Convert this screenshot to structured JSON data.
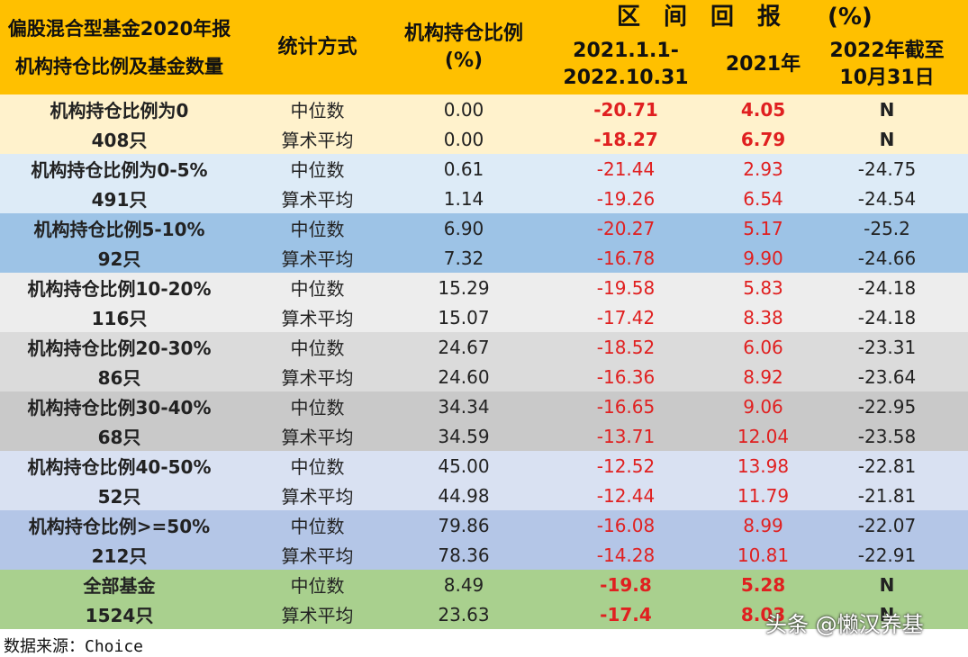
{
  "header": {
    "col1": [
      "偏股混合型基金2020年报",
      "机构持仓比例及基金数量"
    ],
    "col2": "统计方式",
    "col3": [
      "机构持仓比例",
      "(%)"
    ],
    "returns_title": "区　间　回　报　　(%)",
    "col4": [
      "2021.1.1-",
      "2022.10.31"
    ],
    "col5": "2021年",
    "col6": [
      "2022年截至",
      "10月31日"
    ]
  },
  "table": {
    "groups": [
      {
        "label": "机构持仓比例为0",
        "count": "408只",
        "color": "#FFF2CC",
        "bold": true,
        "rows": [
          [
            "中位数",
            "0.00",
            "-20.71",
            "4.05",
            "N"
          ],
          [
            "算术平均",
            "0.00",
            "-18.27",
            "6.79",
            "N"
          ]
        ]
      },
      {
        "label": "机构持仓比例为0-5%",
        "count": "491只",
        "color": "#DDEBF7",
        "bold": false,
        "rows": [
          [
            "中位数",
            "0.61",
            "-21.44",
            "2.93",
            "-24.75"
          ],
          [
            "算术平均",
            "1.14",
            "-19.26",
            "6.54",
            "-24.54"
          ]
        ]
      },
      {
        "label": "机构持仓比例5-10%",
        "count": "92只",
        "color": "#9DC3E6",
        "bold": false,
        "rows": [
          [
            "中位数",
            "6.90",
            "-20.27",
            "5.17",
            "-25.2"
          ],
          [
            "算术平均",
            "7.32",
            "-16.78",
            "9.90",
            "-24.66"
          ]
        ]
      },
      {
        "label": "机构持仓比例10-20%",
        "count": "116只",
        "color": "#EDEDED",
        "bold": false,
        "rows": [
          [
            "中位数",
            "15.29",
            "-19.58",
            "5.83",
            "-24.18"
          ],
          [
            "算术平均",
            "15.07",
            "-17.42",
            "8.38",
            "-24.18"
          ]
        ]
      },
      {
        "label": "机构持仓比例20-30%",
        "count": "86只",
        "color": "#DBDBDB",
        "bold": false,
        "rows": [
          [
            "中位数",
            "24.67",
            "-18.52",
            "6.06",
            "-23.31"
          ],
          [
            "算术平均",
            "24.60",
            "-16.36",
            "8.92",
            "-23.64"
          ]
        ]
      },
      {
        "label": "机构持仓比例30-40%",
        "count": "68只",
        "color": "#C9C9C9",
        "bold": false,
        "rows": [
          [
            "中位数",
            "34.34",
            "-16.65",
            "9.06",
            "-22.95"
          ],
          [
            "算术平均",
            "34.59",
            "-13.71",
            "12.04",
            "-23.58"
          ]
        ]
      },
      {
        "label": "机构持仓比例40-50%",
        "count": "52只",
        "color": "#D9E1F2",
        "bold": false,
        "rows": [
          [
            "中位数",
            "45.00",
            "-12.52",
            "13.98",
            "-22.81"
          ],
          [
            "算术平均",
            "44.98",
            "-12.44",
            "11.79",
            "-21.81"
          ]
        ]
      },
      {
        "label": "机构持仓比例>=50%",
        "count": "212只",
        "color": "#B4C6E7",
        "bold": false,
        "rows": [
          [
            "中位数",
            "79.86",
            "-16.08",
            "8.99",
            "-22.07"
          ],
          [
            "算术平均",
            "78.36",
            "-14.28",
            "10.81",
            "-22.91"
          ]
        ]
      },
      {
        "label": "全部基金",
        "count": "1524只",
        "color": "#A9D08E",
        "bold": true,
        "rows": [
          [
            "中位数",
            "8.49",
            "-19.8",
            "5.28",
            "N"
          ],
          [
            "算术平均",
            "23.63",
            "-17.4",
            "8.03",
            "N"
          ]
        ]
      }
    ]
  },
  "footer": "数据来源：Choice",
  "watermark": "头条 @懒汉养基"
}
